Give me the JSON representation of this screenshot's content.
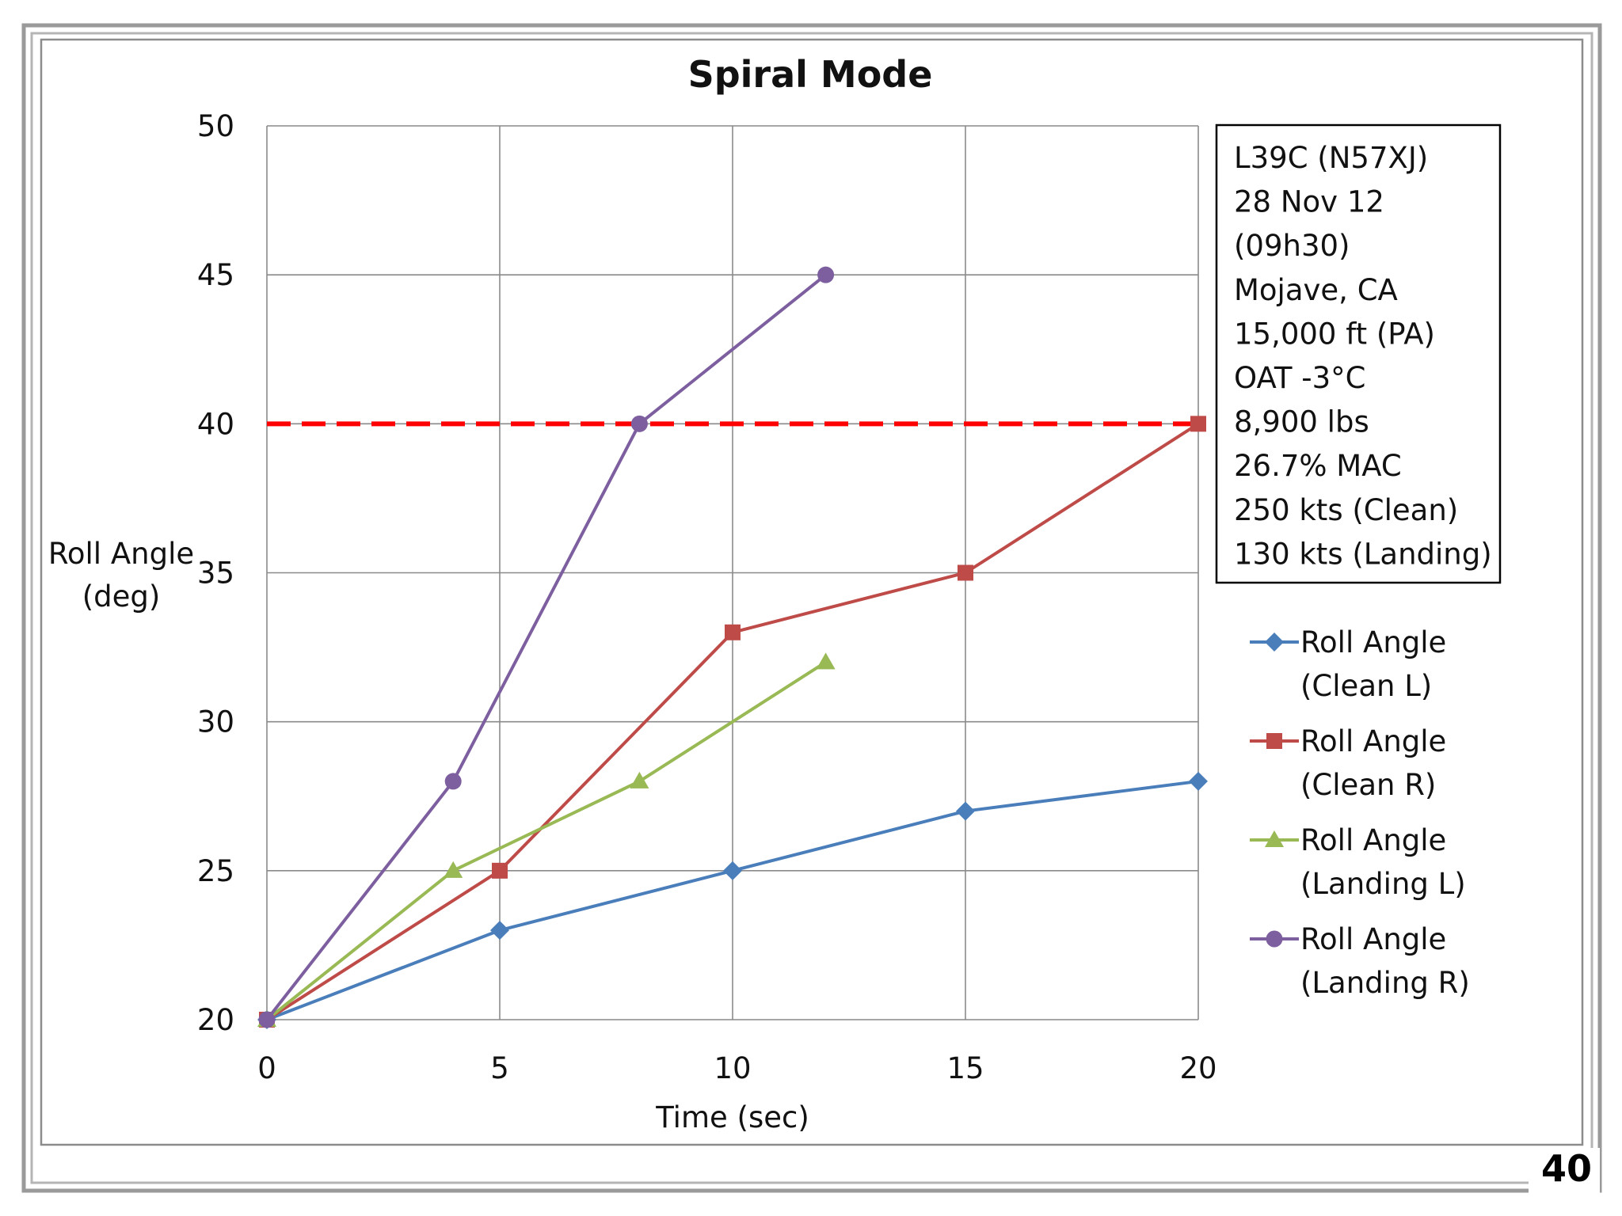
{
  "page": {
    "number": "40"
  },
  "info_box": {
    "lines": [
      "L39C (N57XJ)",
      "28 Nov 12",
      "(09h30)",
      "Mojave, CA",
      "15,000 ft (PA)",
      "OAT -3°C",
      "8,900 lbs",
      "26.7% MAC",
      "250 kts (Clean)",
      "130 kts (Landing)"
    ]
  },
  "chart_data": {
    "type": "line",
    "title": "Spiral Mode",
    "xlabel": "Time (sec)",
    "ylabel_lines": [
      "Roll Angle",
      "(deg)"
    ],
    "xlim": [
      0,
      20
    ],
    "ylim": [
      20,
      50
    ],
    "x_ticks": [
      0,
      5,
      10,
      15,
      20
    ],
    "y_ticks": [
      20,
      25,
      30,
      35,
      40,
      45,
      50
    ],
    "grid": true,
    "legend_position": "right",
    "reference_line": {
      "y": 40,
      "style": "dashed",
      "color": "#ff0000"
    },
    "series": [
      {
        "name_lines": [
          "Roll Angle",
          "(Clean L)"
        ],
        "color": "#4a7ebb",
        "marker": "diamond",
        "x": [
          0,
          5,
          10,
          15,
          20
        ],
        "y": [
          20,
          23,
          25,
          27,
          28
        ]
      },
      {
        "name_lines": [
          "Roll Angle",
          "(Clean R)"
        ],
        "color": "#be4b48",
        "marker": "square",
        "x": [
          0,
          5,
          10,
          15,
          20
        ],
        "y": [
          20,
          25,
          33,
          35,
          40
        ]
      },
      {
        "name_lines": [
          "Roll Angle",
          "(Landing L)"
        ],
        "color": "#98b954",
        "marker": "triangle",
        "x": [
          0,
          4,
          8,
          12
        ],
        "y": [
          20,
          25,
          28,
          32
        ]
      },
      {
        "name_lines": [
          "Roll Angle",
          "(Landing R)"
        ],
        "color": "#7d5fa0",
        "marker": "circle",
        "x": [
          0,
          4,
          8,
          12
        ],
        "y": [
          20,
          28,
          40,
          45
        ]
      }
    ]
  }
}
